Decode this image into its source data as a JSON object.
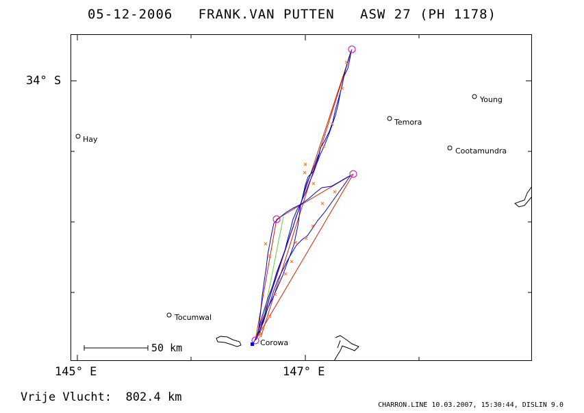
{
  "header": {
    "date": "05-12-2006",
    "pilot": "FRANK.VAN PUTTEN",
    "glider": "ASW 27 (PH 1178)"
  },
  "axes": {
    "lat_label": "34° S",
    "lon_label_left": "145° E",
    "lon_label_right": "147° E"
  },
  "scale_bar": {
    "label": "50 km"
  },
  "towns": [
    {
      "name": "Hay"
    },
    {
      "name": "Temora"
    },
    {
      "name": "Young"
    },
    {
      "name": "Cootamundra"
    },
    {
      "name": "Tocumwal"
    },
    {
      "name": "Corowa"
    }
  ],
  "footer": {
    "distance_label": "Vrije Vlucht:",
    "distance_value": "802.4 km",
    "credit": "CHARRON.LINE 10.03.2007, 15:30:44, DISLIN 9.0"
  },
  "colors": {
    "track": "#0000cc",
    "task_line": "#cc2200",
    "alt_leg": "#66cc33",
    "fix_marker": "#ff7722",
    "turnpoint": "#cc00cc"
  }
}
